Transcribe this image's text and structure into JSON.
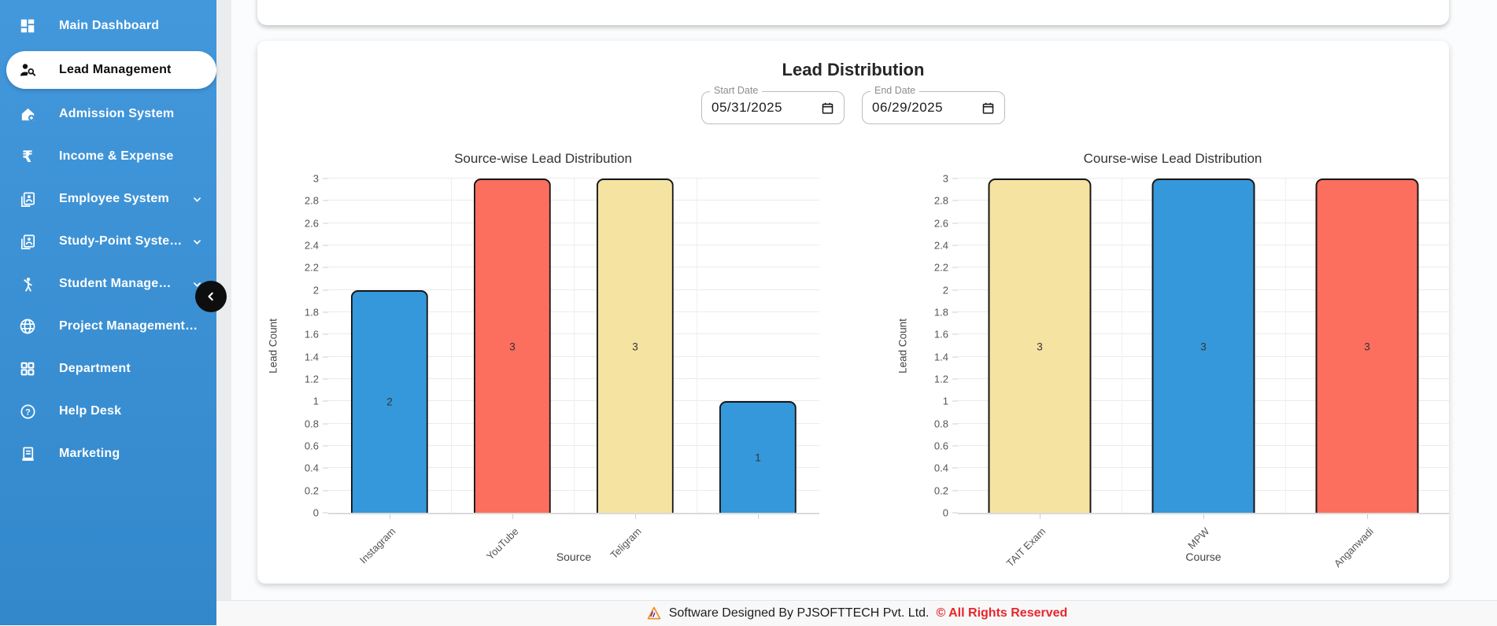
{
  "colors": {
    "sidebar_blue": "#3a91d6",
    "bar_blue": "#3498db",
    "bar_red": "#fc6e5e",
    "bar_yellow": "#f5e3a2",
    "footer_red": "#e8262d"
  },
  "sidebar": {
    "items": [
      {
        "label": "Main Dashboard",
        "icon": "dashboard-icon",
        "active": false,
        "has_submenu": false
      },
      {
        "label": "Lead Management",
        "icon": "person-search-icon",
        "active": true,
        "has_submenu": false
      },
      {
        "label": "Admission System",
        "icon": "house-plus-icon",
        "active": false,
        "has_submenu": false
      },
      {
        "label": "Income & Expense",
        "icon": "rupee-icon",
        "active": false,
        "has_submenu": false
      },
      {
        "label": "Employee System",
        "icon": "id-badge-icon",
        "active": false,
        "has_submenu": true
      },
      {
        "label": "Study-Point Syste…",
        "icon": "id-badge-icon",
        "active": false,
        "has_submenu": true
      },
      {
        "label": "Student Manage…",
        "icon": "student-icon",
        "active": false,
        "has_submenu": true
      },
      {
        "label": "Project Management…",
        "icon": "globe-icon",
        "active": false,
        "has_submenu": false
      },
      {
        "label": "Department",
        "icon": "grid-icon",
        "active": false,
        "has_submenu": false
      },
      {
        "label": "Help Desk",
        "icon": "help-icon",
        "active": false,
        "has_submenu": false
      },
      {
        "label": "Marketing",
        "icon": "receipt-icon",
        "active": false,
        "has_submenu": false
      }
    ]
  },
  "header": {
    "title": "Lead Distribution"
  },
  "filters": {
    "start_date": {
      "label": "Start Date",
      "value": "05/31/2025"
    },
    "end_date": {
      "label": "End Date",
      "value": "06/29/2025"
    }
  },
  "chart_data": [
    {
      "type": "bar",
      "title": "Source-wise Lead Distribution",
      "xlabel": "Source",
      "ylabel": "Lead Count",
      "categories": [
        "Instagram",
        "YouTube",
        "Teligram",
        ""
      ],
      "values": [
        2,
        3,
        3,
        1
      ],
      "colors": [
        "#3498db",
        "#fc6e5e",
        "#f5e3a2",
        "#3498db"
      ],
      "ylim": [
        0,
        3
      ],
      "yticks": [
        "0",
        "0.2",
        "0.4",
        "0.6",
        "0.8",
        "1",
        "1.2",
        "1.4",
        "1.6",
        "1.8",
        "2",
        "2.2",
        "2.4",
        "2.6",
        "2.8",
        "3"
      ],
      "grid": true,
      "legend": "none",
      "value_labels": true
    },
    {
      "type": "bar",
      "title": "Course-wise Lead Distribution",
      "xlabel": "Course",
      "ylabel": "Lead Count",
      "categories": [
        "TAIT Exam",
        "MPW",
        "Anganwadi"
      ],
      "values": [
        3,
        3,
        3
      ],
      "colors": [
        "#f5e3a2",
        "#3498db",
        "#fc6e5e"
      ],
      "ylim": [
        0,
        3
      ],
      "yticks": [
        "0",
        "0.2",
        "0.4",
        "0.6",
        "0.8",
        "1",
        "1.2",
        "1.4",
        "1.6",
        "1.8",
        "2",
        "2.2",
        "2.4",
        "2.6",
        "2.8",
        "3"
      ],
      "grid": true,
      "legend": "none",
      "value_labels": true
    }
  ],
  "footer": {
    "text": "Software Designed By PJSOFTTECH Pvt. Ltd.",
    "rights": "© All Rights Reserved"
  }
}
